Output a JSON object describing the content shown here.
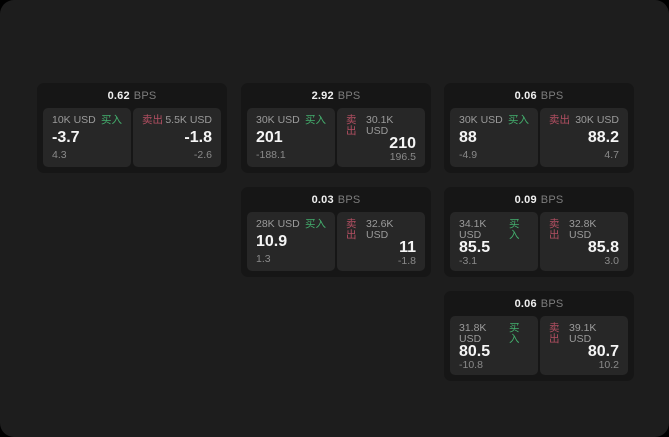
{
  "labels": {
    "bps_unit": "BPS",
    "buy": "买入",
    "sell": "卖出"
  },
  "colors": {
    "window_background": "#1d1d1d",
    "card_background": "#161616",
    "panel_background": "#272727",
    "buy_green": "#44b06e",
    "sell_red": "#b34f62",
    "value_white": "#f5f5f5",
    "muted_gray": "#8a8a8a"
  },
  "cards": [
    {
      "bps": "0.62",
      "buy": {
        "amount": "10K USD",
        "value": "-3.7",
        "sub": "4.3"
      },
      "sell": {
        "amount": "5.5K USD",
        "value": "-1.8",
        "sub": "-2.6"
      }
    },
    {
      "bps": "2.92",
      "buy": {
        "amount": "30K USD",
        "value": "201",
        "sub": "-188.1"
      },
      "sell": {
        "amount": "30.1K USD",
        "value": "210",
        "sub": "196.5"
      }
    },
    {
      "bps": "0.06",
      "buy": {
        "amount": "30K USD",
        "value": "88",
        "sub": "-4.9"
      },
      "sell": {
        "amount": "30K USD",
        "value": "88.2",
        "sub": "4.7"
      }
    },
    {
      "bps": "0.03",
      "buy": {
        "amount": "28K USD",
        "value": "10.9",
        "sub": "1.3"
      },
      "sell": {
        "amount": "32.6K USD",
        "value": "11",
        "sub": "-1.8"
      }
    },
    {
      "bps": "0.09",
      "buy": {
        "amount": "34.1K USD",
        "value": "85.5",
        "sub": "-3.1"
      },
      "sell": {
        "amount": "32.8K USD",
        "value": "85.8",
        "sub": "3.0"
      }
    },
    {
      "bps": "0.06",
      "buy": {
        "amount": "31.8K USD",
        "value": "80.5",
        "sub": "-10.8"
      },
      "sell": {
        "amount": "39.1K USD",
        "value": "80.7",
        "sub": "10.2"
      }
    }
  ]
}
